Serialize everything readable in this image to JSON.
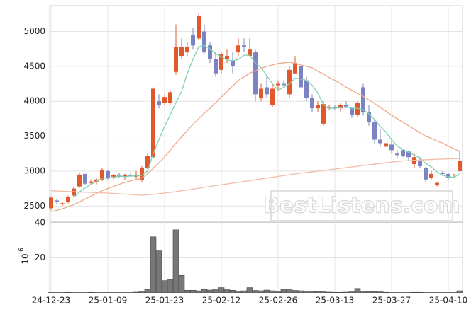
{
  "chart_data": [
    {
      "type": "candlestick",
      "categories": [
        "24-12-23",
        null,
        null,
        null,
        null,
        null,
        null,
        null,
        null,
        null,
        "25-01-09",
        null,
        null,
        null,
        null,
        null,
        null,
        null,
        null,
        null,
        "25-01-23",
        null,
        null,
        null,
        null,
        null,
        null,
        null,
        null,
        null,
        "25-02-12",
        null,
        null,
        null,
        null,
        null,
        null,
        null,
        null,
        null,
        "25-02-26",
        null,
        null,
        null,
        null,
        null,
        null,
        null,
        null,
        null,
        "25-03-13",
        null,
        null,
        null,
        null,
        null,
        null,
        null,
        null,
        null,
        "25-03-27",
        null,
        null,
        null,
        null,
        null,
        null,
        null,
        null,
        null,
        "25-04-10",
        null,
        null
      ],
      "open": [
        2470,
        2580,
        2530,
        2560,
        2650,
        2780,
        2960,
        2830,
        2850,
        2880,
        3000,
        2920,
        2950,
        2920,
        2940,
        2920,
        2870,
        3050,
        3200,
        4000,
        3980,
        3980,
        4420,
        4650,
        4700,
        4950,
        4900,
        5000,
        4800,
        4600,
        4450,
        4600,
        4580,
        4700,
        4800,
        4650,
        4700,
        4050,
        4200,
        3950,
        4230,
        4250,
        4100,
        4400,
        4500,
        4300,
        4050,
        3900,
        3680,
        3900,
        3920,
        3900,
        3950,
        3900,
        3800,
        4200,
        3850,
        3700,
        3450,
        3350,
        3380,
        3250,
        3300,
        3280,
        3100,
        3150,
        3050,
        2900,
        2800,
        2980,
        2960,
        2940,
        3000
      ],
      "high": [
        2640,
        2600,
        2560,
        2650,
        2780,
        2980,
        2960,
        2880,
        2900,
        3040,
        3020,
        2960,
        2980,
        2960,
        2970,
        3000,
        3070,
        3250,
        4200,
        4100,
        4100,
        4160,
        5100,
        4900,
        4850,
        5050,
        5250,
        5100,
        4850,
        4700,
        4700,
        4750,
        4700,
        4900,
        4900,
        4900,
        4750,
        4250,
        4350,
        4250,
        4300,
        4300,
        4500,
        4650,
        4500,
        4350,
        4100,
        4000,
        4000,
        3950,
        3950,
        3980,
        4000,
        3920,
        4000,
        4250,
        3950,
        3750,
        3600,
        3400,
        3450,
        3300,
        3320,
        3300,
        3250,
        3200,
        3060,
        3000,
        2850,
        3000,
        2980,
        2960,
        3300
      ],
      "low": [
        2440,
        2520,
        2500,
        2540,
        2630,
        2760,
        2800,
        2800,
        2810,
        2860,
        2870,
        2880,
        2900,
        2870,
        2920,
        2880,
        2850,
        3030,
        3180,
        3900,
        3940,
        3950,
        4380,
        4600,
        4650,
        4750,
        4880,
        4680,
        4550,
        4350,
        4400,
        4550,
        4400,
        4650,
        4700,
        4680,
        4000,
        4000,
        4050,
        3920,
        4150,
        4220,
        4050,
        4400,
        4200,
        4000,
        3850,
        3850,
        3650,
        3880,
        3880,
        3850,
        3900,
        3760,
        3780,
        3800,
        3650,
        3400,
        3350,
        3350,
        3250,
        3180,
        3200,
        3150,
        3050,
        3050,
        2850,
        2880,
        2780,
        2940,
        2880,
        2920,
        2990
      ],
      "close": [
        2620,
        2560,
        2540,
        2630,
        2750,
        2950,
        2820,
        2850,
        2880,
        3020,
        2900,
        2940,
        2920,
        2950,
        2930,
        2950,
        3050,
        3220,
        4180,
        3950,
        4060,
        4130,
        4780,
        4780,
        4780,
        4800,
        5220,
        4700,
        4600,
        4400,
        4680,
        4650,
        4500,
        4800,
        4780,
        4750,
        4100,
        4180,
        4100,
        4180,
        4250,
        4230,
        4450,
        4550,
        4200,
        4050,
        3900,
        3950,
        3960,
        3920,
        3900,
        3950,
        3920,
        3800,
        3980,
        3850,
        3700,
        3450,
        3400,
        3400,
        3300,
        3230,
        3220,
        3200,
        3200,
        3070,
        2880,
        2960,
        2830,
        2960,
        2900,
        2950,
        3150
      ],
      "up_color": "#e0582b",
      "down_color": "#7b83c2",
      "lines": [
        {
          "color": "#7fd1b0",
          "values": [
            null,
            null,
            null,
            null,
            2620,
            2700,
            2760,
            2810,
            2850,
            2900,
            2900,
            2910,
            2930,
            2920,
            2930,
            2930,
            2940,
            3000,
            3250,
            3450,
            3640,
            3810,
            3980,
            4140,
            4400,
            4600,
            4780,
            4800,
            4750,
            4680,
            4640,
            4590,
            4580,
            4600,
            4660,
            4660,
            4550,
            4480,
            4370,
            4250,
            4160,
            4200,
            4250,
            4330,
            4320,
            4300,
            4230,
            4120,
            3950,
            3900,
            3900,
            3910,
            3920,
            3900,
            3900,
            3880,
            3820,
            3740,
            3640,
            3560,
            3450,
            3360,
            3310,
            3270,
            3230,
            3190,
            3110,
            3060,
            2990,
            2940,
            2920,
            2910,
            2960
          ]
        },
        {
          "color": "#eea889",
          "values": [
            2420,
            2440,
            2460,
            2490,
            2520,
            2560,
            2600,
            2640,
            2680,
            2720,
            2750,
            2780,
            2810,
            2840,
            2860,
            2880,
            2900,
            2960,
            3040,
            3120,
            3200,
            3300,
            3400,
            3490,
            3580,
            3670,
            3750,
            3830,
            3900,
            3980,
            4060,
            4140,
            4220,
            4300,
            4350,
            4400,
            4440,
            4470,
            4500,
            4520,
            4540,
            4550,
            4560,
            4540,
            4520,
            4500,
            4480,
            4430,
            4390,
            4340,
            4300,
            4250,
            4200,
            4160,
            4110,
            4070,
            4020,
            3970,
            3910,
            3860,
            3800,
            3750,
            3700,
            3650,
            3600,
            3550,
            3500,
            3470,
            3430,
            3400,
            3360,
            3320,
            3280
          ]
        },
        {
          "color": "#f0bda4",
          "values": [
            2720,
            2715,
            2712,
            2708,
            2705,
            2700,
            2698,
            2695,
            2692,
            2688,
            2685,
            2680,
            2675,
            2670,
            2665,
            2660,
            2655,
            2660,
            2668,
            2676,
            2685,
            2695,
            2705,
            2718,
            2730,
            2742,
            2755,
            2768,
            2780,
            2792,
            2804,
            2816,
            2828,
            2840,
            2852,
            2864,
            2876,
            2888,
            2900,
            2912,
            2924,
            2936,
            2948,
            2960,
            2970,
            2980,
            2990,
            3000,
            3010,
            3020,
            3030,
            3040,
            3050,
            3060,
            3070,
            3080,
            3090,
            3100,
            3110,
            3120,
            3130,
            3138,
            3145,
            3150,
            3155,
            3160,
            3163,
            3166,
            3170,
            3172,
            3175,
            3178,
            3180
          ]
        }
      ],
      "ylim": [
        2280,
        5370
      ],
      "yticks": [
        2500,
        3000,
        3500,
        4000,
        4500,
        5000
      ],
      "grid": true,
      "watermark": "BestListens.com"
    },
    {
      "type": "bar",
      "values": [
        0.2,
        0.2,
        0.2,
        0.3,
        0.2,
        0.2,
        0.2,
        0.3,
        0.2,
        0.2,
        0.2,
        0.2,
        0.2,
        0.2,
        0.2,
        0.4,
        1,
        2,
        32,
        24,
        7,
        7.5,
        36,
        10,
        1.5,
        1.5,
        1.2,
        2,
        1.6,
        2.2,
        3,
        1.8,
        1.5,
        1,
        1.2,
        3,
        1.4,
        1.2,
        1.6,
        1.2,
        1,
        2,
        1.8,
        1.4,
        1.2,
        1,
        1,
        0.8,
        0.6,
        0.4,
        0.3,
        0.3,
        0.4,
        0.6,
        2.5,
        1,
        0.8,
        0.8,
        0.6,
        0.3,
        0.2,
        0.2,
        0.2,
        0.2,
        0.3,
        0.3,
        0.2,
        0.2,
        0.2,
        0.2,
        0.2,
        0.2,
        1.2
      ],
      "color": "#777777",
      "ylim": [
        0,
        40
      ],
      "yticks": [
        20,
        40
      ],
      "ylabel": "10",
      "ylabel_exponent": "6",
      "grid": true
    }
  ]
}
